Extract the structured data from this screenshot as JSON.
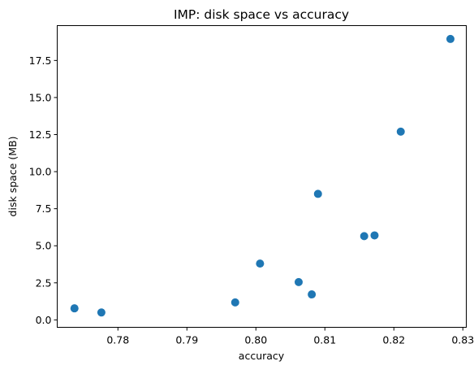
{
  "chart_data": {
    "type": "scatter",
    "title": "IMP: disk space vs accuracy",
    "xlabel": "accuracy",
    "ylabel": "disk space (MB)",
    "xlim": [
      0.7712,
      0.8305
    ],
    "ylim": [
      -0.5,
      19.85
    ],
    "xticks": [
      0.78,
      0.79,
      0.8,
      0.81,
      0.82,
      0.83
    ],
    "xtick_labels": [
      "0.78",
      "0.79",
      "0.80",
      "0.81",
      "0.82",
      "0.83"
    ],
    "yticks": [
      0.0,
      2.5,
      5.0,
      7.5,
      10.0,
      12.5,
      15.0,
      17.5
    ],
    "ytick_labels": [
      "0.0",
      "2.5",
      "5.0",
      "7.5",
      "10.0",
      "12.5",
      "15.0",
      "17.5"
    ],
    "grid": false,
    "marker_color": "#1f77b4",
    "points": [
      {
        "x": 0.7737,
        "y": 0.78
      },
      {
        "x": 0.7776,
        "y": 0.5
      },
      {
        "x": 0.797,
        "y": 1.18
      },
      {
        "x": 0.8006,
        "y": 3.8
      },
      {
        "x": 0.8062,
        "y": 2.55
      },
      {
        "x": 0.8081,
        "y": 1.72
      },
      {
        "x": 0.809,
        "y": 8.5
      },
      {
        "x": 0.8157,
        "y": 5.65
      },
      {
        "x": 0.8172,
        "y": 5.7
      },
      {
        "x": 0.821,
        "y": 12.7
      },
      {
        "x": 0.8282,
        "y": 18.95
      }
    ]
  }
}
